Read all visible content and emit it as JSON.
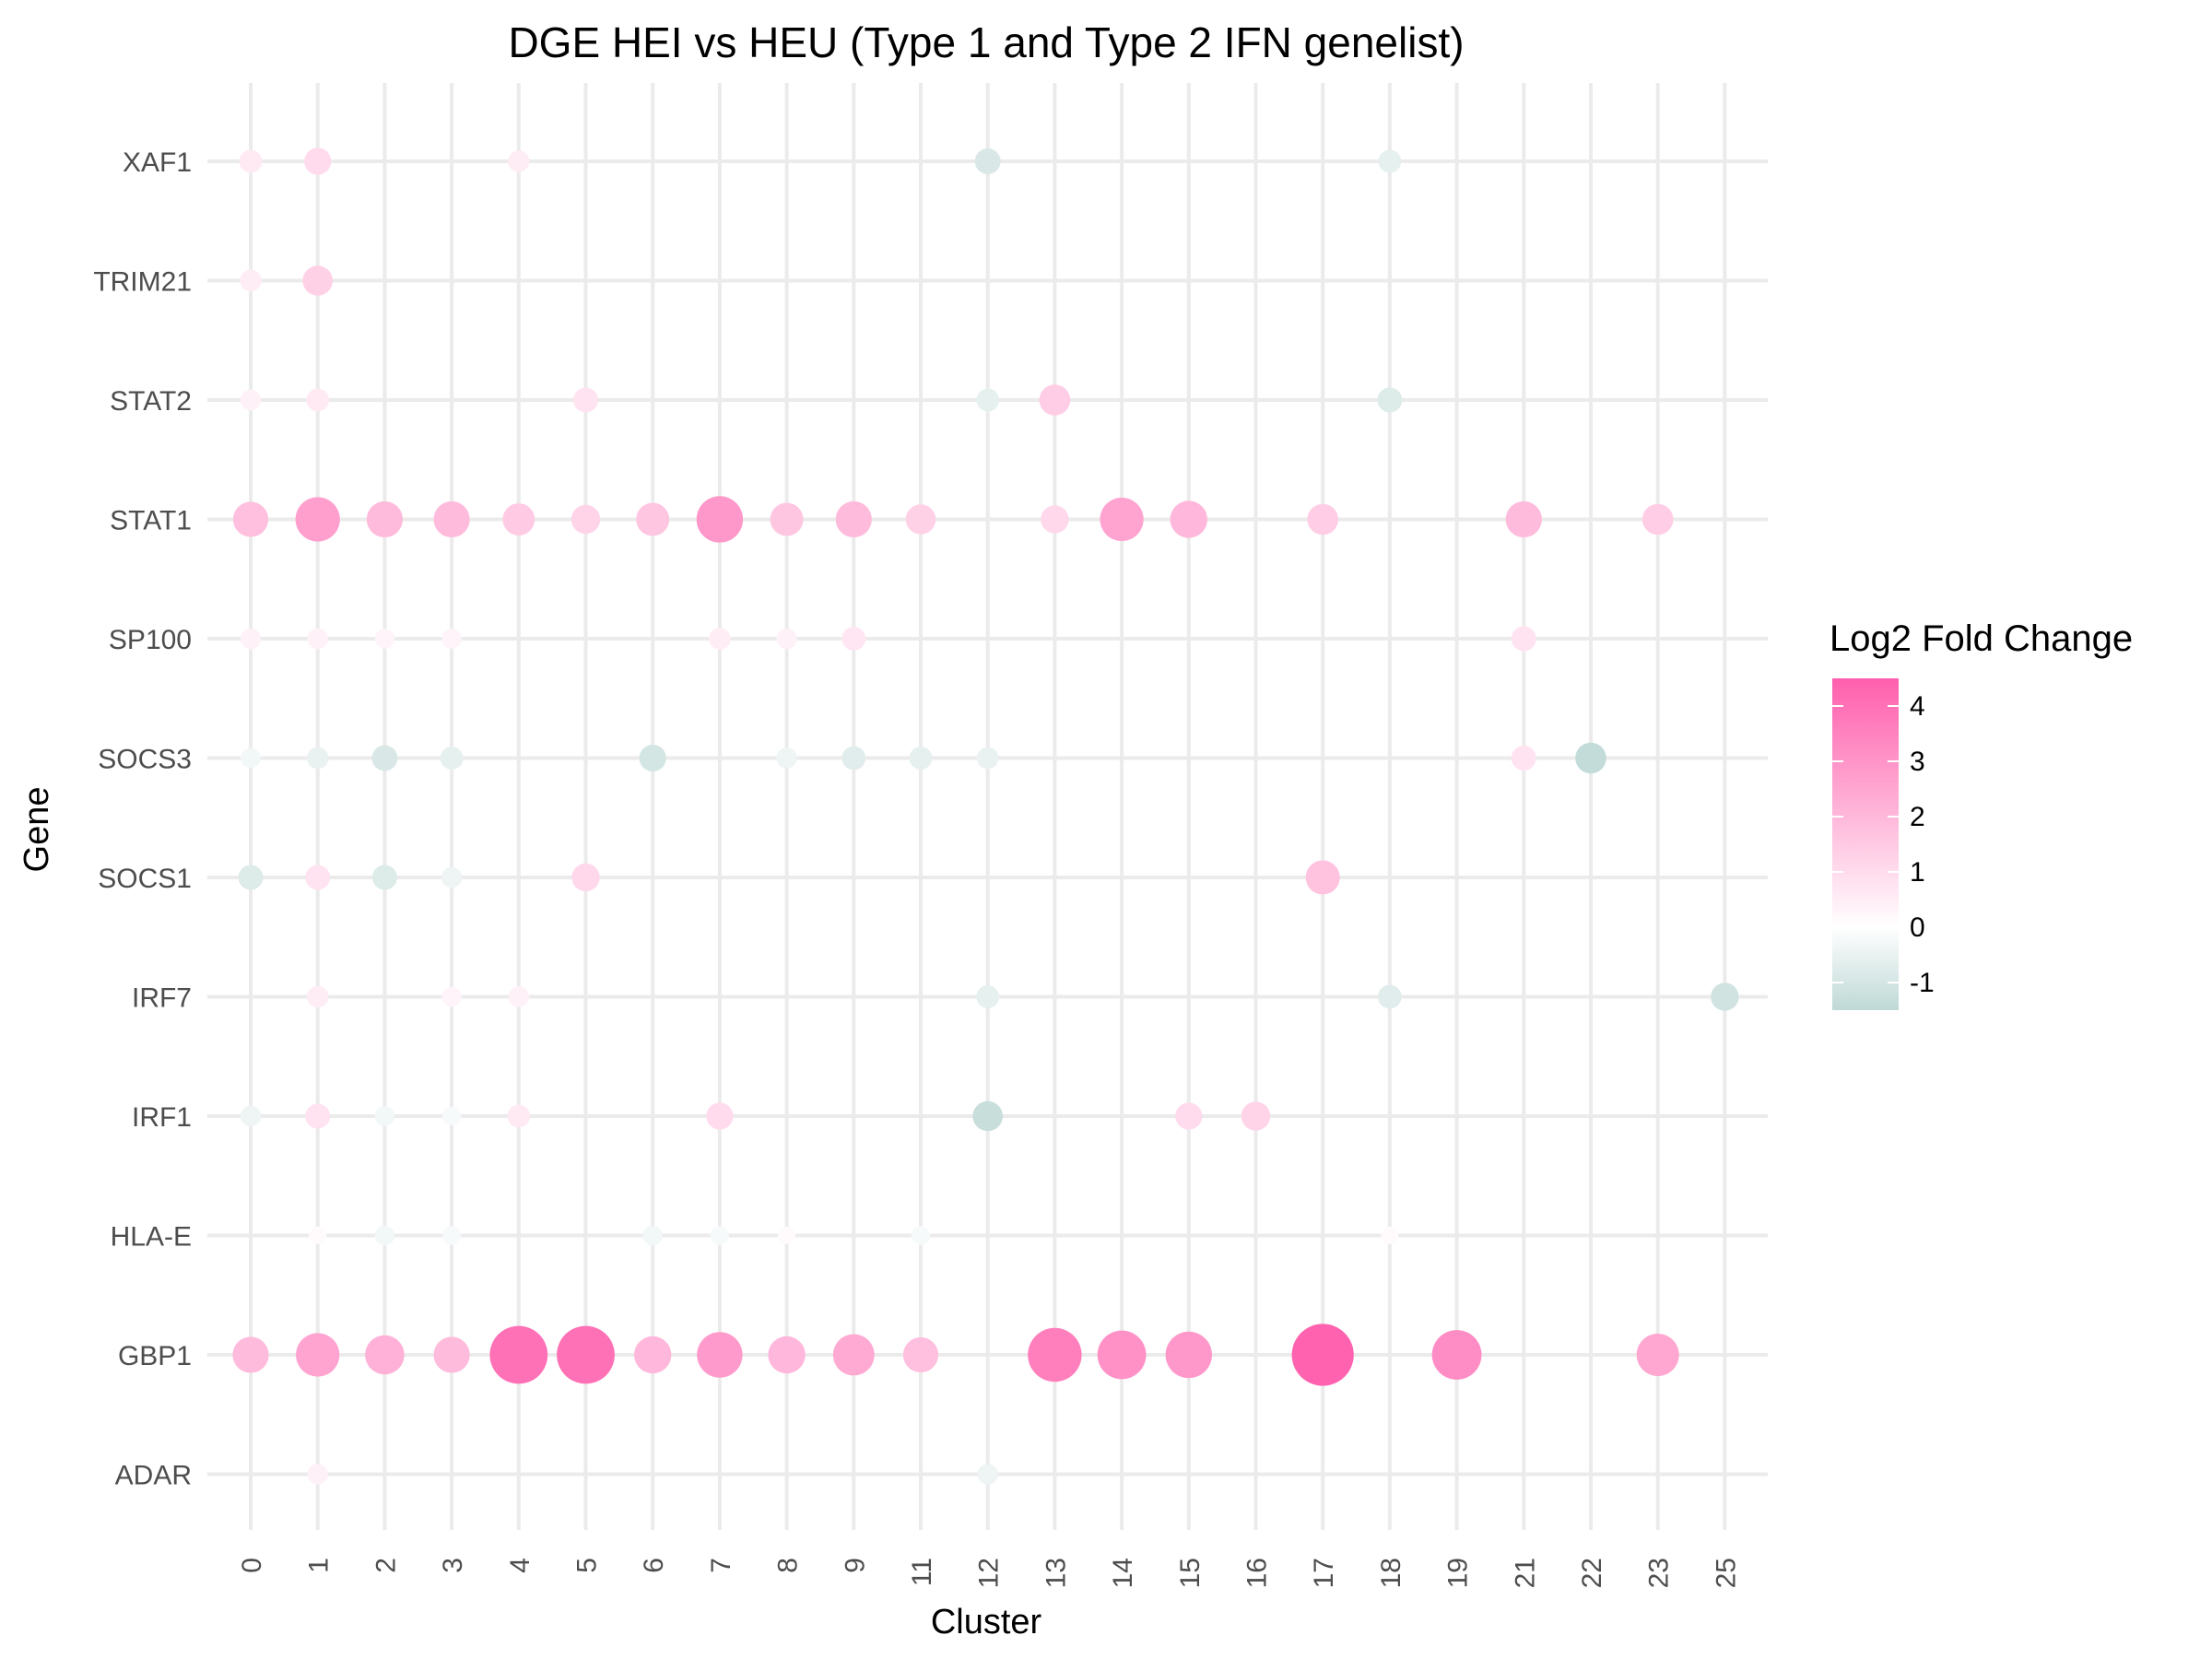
{
  "chart_data": {
    "type": "scatter",
    "title": "DGE HEI vs HEU (Type 1 and Type 2 IFN genelist)",
    "xlabel": "Cluster",
    "ylabel": "Gene",
    "x_categories": [
      "0",
      "1",
      "2",
      "3",
      "4",
      "5",
      "6",
      "7",
      "8",
      "9",
      "11",
      "12",
      "13",
      "14",
      "15",
      "16",
      "17",
      "18",
      "19",
      "21",
      "22",
      "23",
      "25"
    ],
    "y_categories": [
      "ADAR",
      "GBP1",
      "HLA-E",
      "IRF1",
      "IRF7",
      "SOCS1",
      "SOCS3",
      "SP100",
      "STAT1",
      "STAT2",
      "TRIM21",
      "XAF1"
    ],
    "legend": {
      "title": "Log2 Fold Change",
      "ticks": [
        4,
        3,
        2,
        1,
        0,
        -1
      ],
      "range": [
        -1.5,
        4.5
      ],
      "colors": {
        "low": "#bfd9d6",
        "mid": "#ffffff",
        "high": "#ff5fad"
      },
      "placement": "right"
    },
    "grid": true,
    "points": [
      {
        "x": "0",
        "y": "XAF1",
        "value": 0.6
      },
      {
        "x": "1",
        "y": "XAF1",
        "value": 1.0
      },
      {
        "x": "4",
        "y": "XAF1",
        "value": 0.5
      },
      {
        "x": "12",
        "y": "XAF1",
        "value": -0.9
      },
      {
        "x": "18",
        "y": "XAF1",
        "value": -0.6
      },
      {
        "x": "0",
        "y": "TRIM21",
        "value": 0.5
      },
      {
        "x": "1",
        "y": "TRIM21",
        "value": 1.3
      },
      {
        "x": "0",
        "y": "STAT2",
        "value": 0.4
      },
      {
        "x": "1",
        "y": "STAT2",
        "value": 0.6
      },
      {
        "x": "5",
        "y": "STAT2",
        "value": 0.8
      },
      {
        "x": "12",
        "y": "STAT2",
        "value": -0.6
      },
      {
        "x": "13",
        "y": "STAT2",
        "value": 1.4
      },
      {
        "x": "18",
        "y": "STAT2",
        "value": -0.8
      },
      {
        "x": "0",
        "y": "STAT1",
        "value": 1.8
      },
      {
        "x": "1",
        "y": "STAT1",
        "value": 2.7
      },
      {
        "x": "2",
        "y": "STAT1",
        "value": 1.9
      },
      {
        "x": "3",
        "y": "STAT1",
        "value": 1.9
      },
      {
        "x": "4",
        "y": "STAT1",
        "value": 1.5
      },
      {
        "x": "5",
        "y": "STAT1",
        "value": 1.2
      },
      {
        "x": "6",
        "y": "STAT1",
        "value": 1.6
      },
      {
        "x": "7",
        "y": "STAT1",
        "value": 2.9
      },
      {
        "x": "8",
        "y": "STAT1",
        "value": 1.6
      },
      {
        "x": "9",
        "y": "STAT1",
        "value": 1.9
      },
      {
        "x": "11",
        "y": "STAT1",
        "value": 1.3
      },
      {
        "x": "13",
        "y": "STAT1",
        "value": 1.1
      },
      {
        "x": "14",
        "y": "STAT1",
        "value": 2.6
      },
      {
        "x": "15",
        "y": "STAT1",
        "value": 2.0
      },
      {
        "x": "17",
        "y": "STAT1",
        "value": 1.4
      },
      {
        "x": "21",
        "y": "STAT1",
        "value": 1.9
      },
      {
        "x": "23",
        "y": "STAT1",
        "value": 1.4
      },
      {
        "x": "0",
        "y": "SP100",
        "value": 0.4
      },
      {
        "x": "1",
        "y": "SP100",
        "value": 0.4
      },
      {
        "x": "2",
        "y": "SP100",
        "value": 0.3
      },
      {
        "x": "3",
        "y": "SP100",
        "value": 0.3
      },
      {
        "x": "7",
        "y": "SP100",
        "value": 0.5
      },
      {
        "x": "8",
        "y": "SP100",
        "value": 0.4
      },
      {
        "x": "9",
        "y": "SP100",
        "value": 0.7
      },
      {
        "x": "21",
        "y": "SP100",
        "value": 0.8
      },
      {
        "x": "0",
        "y": "SOCS3",
        "value": -0.3
      },
      {
        "x": "1",
        "y": "SOCS3",
        "value": -0.5
      },
      {
        "x": "2",
        "y": "SOCS3",
        "value": -0.9
      },
      {
        "x": "3",
        "y": "SOCS3",
        "value": -0.6
      },
      {
        "x": "6",
        "y": "SOCS3",
        "value": -1.0
      },
      {
        "x": "8",
        "y": "SOCS3",
        "value": -0.4
      },
      {
        "x": "9",
        "y": "SOCS3",
        "value": -0.7
      },
      {
        "x": "11",
        "y": "SOCS3",
        "value": -0.6
      },
      {
        "x": "12",
        "y": "SOCS3",
        "value": -0.5
      },
      {
        "x": "21",
        "y": "SOCS3",
        "value": 0.8
      },
      {
        "x": "22",
        "y": "SOCS3",
        "value": -1.4
      },
      {
        "x": "0",
        "y": "SOCS1",
        "value": -0.8
      },
      {
        "x": "1",
        "y": "SOCS1",
        "value": 0.8
      },
      {
        "x": "2",
        "y": "SOCS1",
        "value": -0.8
      },
      {
        "x": "3",
        "y": "SOCS1",
        "value": -0.4
      },
      {
        "x": "5",
        "y": "SOCS1",
        "value": 1.1
      },
      {
        "x": "17",
        "y": "SOCS1",
        "value": 1.7
      },
      {
        "x": "1",
        "y": "IRF7",
        "value": 0.5
      },
      {
        "x": "3",
        "y": "IRF7",
        "value": 0.3
      },
      {
        "x": "4",
        "y": "IRF7",
        "value": 0.4
      },
      {
        "x": "12",
        "y": "IRF7",
        "value": -0.6
      },
      {
        "x": "18",
        "y": "IRF7",
        "value": -0.7
      },
      {
        "x": "25",
        "y": "IRF7",
        "value": -1.1
      },
      {
        "x": "0",
        "y": "IRF1",
        "value": -0.4
      },
      {
        "x": "1",
        "y": "IRF1",
        "value": 0.8
      },
      {
        "x": "2",
        "y": "IRF1",
        "value": -0.3
      },
      {
        "x": "3",
        "y": "IRF1",
        "value": -0.2
      },
      {
        "x": "4",
        "y": "IRF1",
        "value": 0.6
      },
      {
        "x": "7",
        "y": "IRF1",
        "value": 1.0
      },
      {
        "x": "12",
        "y": "IRF1",
        "value": -1.3
      },
      {
        "x": "15",
        "y": "IRF1",
        "value": 1.0
      },
      {
        "x": "16",
        "y": "IRF1",
        "value": 1.2
      },
      {
        "x": "1",
        "y": "HLA-E",
        "value": 0.1
      },
      {
        "x": "2",
        "y": "HLA-E",
        "value": -0.3
      },
      {
        "x": "3",
        "y": "HLA-E",
        "value": -0.2
      },
      {
        "x": "6",
        "y": "HLA-E",
        "value": -0.3
      },
      {
        "x": "7",
        "y": "HLA-E",
        "value": -0.2
      },
      {
        "x": "8",
        "y": "HLA-E",
        "value": 0.1
      },
      {
        "x": "11",
        "y": "HLA-E",
        "value": -0.2
      },
      {
        "x": "18",
        "y": "HLA-E",
        "value": 0.1
      },
      {
        "x": "0",
        "y": "GBP1",
        "value": 1.9
      },
      {
        "x": "1",
        "y": "GBP1",
        "value": 2.6
      },
      {
        "x": "2",
        "y": "GBP1",
        "value": 2.2
      },
      {
        "x": "3",
        "y": "GBP1",
        "value": 1.9
      },
      {
        "x": "4",
        "y": "GBP1",
        "value": 4.0
      },
      {
        "x": "5",
        "y": "GBP1",
        "value": 4.0
      },
      {
        "x": "6",
        "y": "GBP1",
        "value": 2.0
      },
      {
        "x": "7",
        "y": "GBP1",
        "value": 2.8
      },
      {
        "x": "8",
        "y": "GBP1",
        "value": 2.0
      },
      {
        "x": "9",
        "y": "GBP1",
        "value": 2.4
      },
      {
        "x": "11",
        "y": "GBP1",
        "value": 1.8
      },
      {
        "x": "13",
        "y": "GBP1",
        "value": 3.6
      },
      {
        "x": "14",
        "y": "GBP1",
        "value": 3.1
      },
      {
        "x": "15",
        "y": "GBP1",
        "value": 2.9
      },
      {
        "x": "17",
        "y": "GBP1",
        "value": 4.4
      },
      {
        "x": "19",
        "y": "GBP1",
        "value": 3.2
      },
      {
        "x": "23",
        "y": "GBP1",
        "value": 2.5
      },
      {
        "x": "1",
        "y": "ADAR",
        "value": 0.4
      },
      {
        "x": "12",
        "y": "ADAR",
        "value": -0.4
      }
    ]
  }
}
